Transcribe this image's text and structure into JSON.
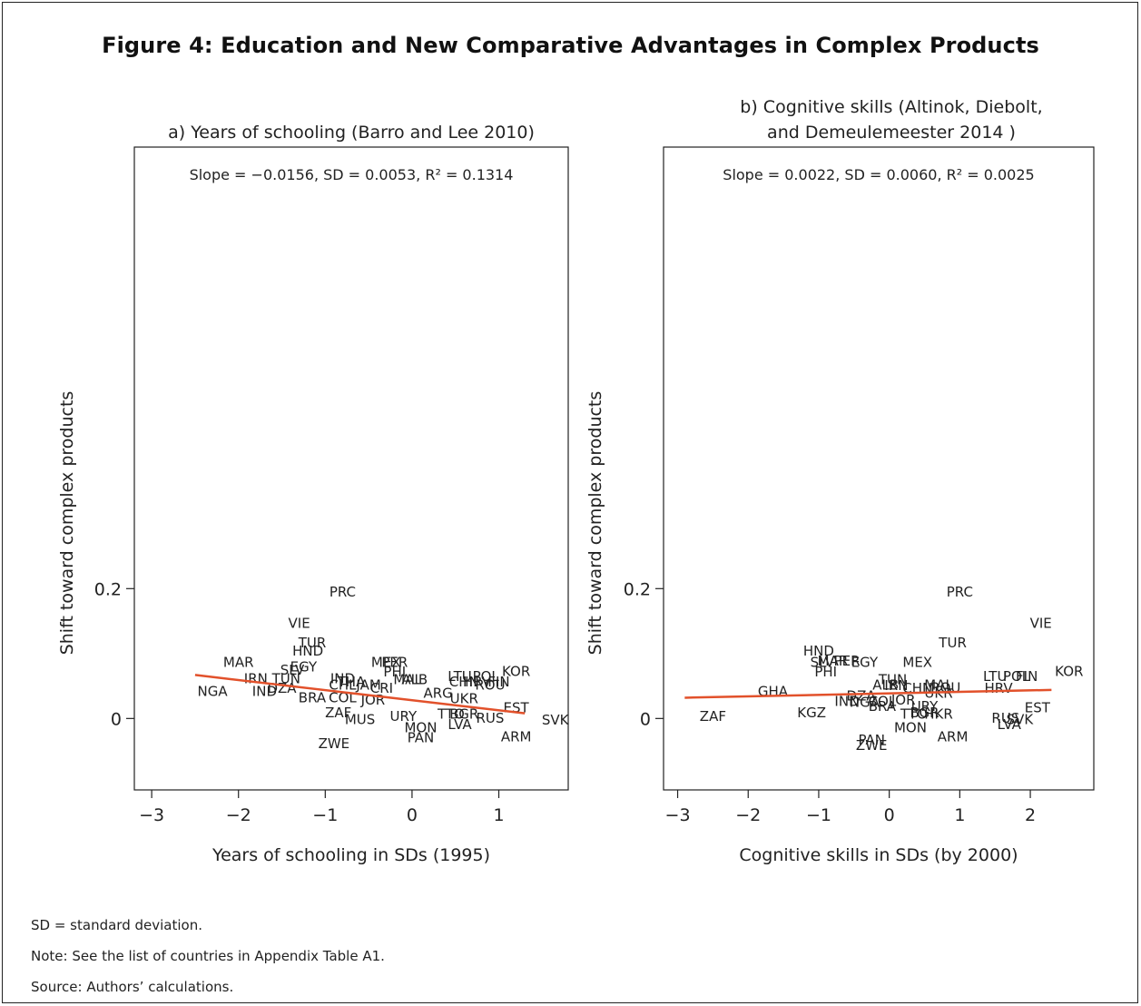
{
  "figure": {
    "title": "Figure 4: Education and New Comparative Advantages in Complex Products"
  },
  "notes": [
    "SD = standard deviation.",
    "Note: See the list of countries in Appendix Table A1.",
    "Source: Authors’ calculations."
  ],
  "colors": {
    "fit_line": "#e2512b",
    "text": "#222222",
    "axis": "#222222"
  },
  "chart_data": [
    {
      "type": "scatter",
      "title": "a) Years of schooling (Barro and Lee 2010)",
      "title_lines": [
        "a) Years of schooling (Barro and Lee 2010)"
      ],
      "annotation": "Slope = −0.0156, SD = 0.0053, R² = 0.1314",
      "xlabel": "Years of schooling in SDs (1995)",
      "ylabel": "Shift toward complex products",
      "xlim": [
        -3.2,
        1.8
      ],
      "ylim": [
        -0.11,
        0.88
      ],
      "xticks": [
        -3,
        -2,
        -1,
        0,
        1
      ],
      "xtick_labels": [
        "−3",
        "−2",
        "−1",
        "0",
        "1"
      ],
      "yticks": [
        0,
        0.2
      ],
      "ytick_labels": [
        "0",
        "0.2"
      ],
      "fit_line": {
        "x": [
          -2.5,
          1.3
        ],
        "y": [
          0.067,
          0.008
        ]
      },
      "points": [
        {
          "label": "PRC",
          "x": -0.8,
          "y": 0.196
        },
        {
          "label": "VIE",
          "x": -1.3,
          "y": 0.148
        },
        {
          "label": "TUR",
          "x": -1.15,
          "y": 0.118
        },
        {
          "label": "HND",
          "x": -1.2,
          "y": 0.105
        },
        {
          "label": "MAR",
          "x": -2.0,
          "y": 0.088
        },
        {
          "label": "EGY",
          "x": -1.25,
          "y": 0.081
        },
        {
          "label": "SLV",
          "x": -1.38,
          "y": 0.076
        },
        {
          "label": "IRN",
          "x": -1.8,
          "y": 0.063
        },
        {
          "label": "TUN",
          "x": -1.45,
          "y": 0.063
        },
        {
          "label": "IND",
          "x": -1.7,
          "y": 0.043
        },
        {
          "label": "DZA",
          "x": -1.5,
          "y": 0.048
        },
        {
          "label": "NGA",
          "x": -2.3,
          "y": 0.043
        },
        {
          "label": "MEX",
          "x": -0.3,
          "y": 0.088
        },
        {
          "label": "PER",
          "x": -0.2,
          "y": 0.088
        },
        {
          "label": "PHI",
          "x": -0.2,
          "y": 0.073
        },
        {
          "label": "MAL",
          "x": -0.05,
          "y": 0.061
        },
        {
          "label": "ALB",
          "x": 0.03,
          "y": 0.061
        },
        {
          "label": "IND",
          "x": -0.8,
          "y": 0.063
        },
        {
          "label": "THA",
          "x": -0.7,
          "y": 0.058
        },
        {
          "label": "CHL",
          "x": -0.8,
          "y": 0.053
        },
        {
          "label": "JAM",
          "x": -0.5,
          "y": 0.053
        },
        {
          "label": "CRI",
          "x": -0.35,
          "y": 0.048
        },
        {
          "label": "BRA",
          "x": -1.15,
          "y": 0.033
        },
        {
          "label": "COL",
          "x": -0.8,
          "y": 0.033
        },
        {
          "label": "JOR",
          "x": -0.45,
          "y": 0.03
        },
        {
          "label": "ZAF",
          "x": -0.85,
          "y": 0.01
        },
        {
          "label": "MUS",
          "x": -0.6,
          "y": 0.0
        },
        {
          "label": "URY",
          "x": -0.1,
          "y": 0.005
        },
        {
          "label": "MON",
          "x": 0.1,
          "y": -0.013
        },
        {
          "label": "PAN",
          "x": 0.1,
          "y": -0.028
        },
        {
          "label": "ZWE",
          "x": -0.9,
          "y": -0.037
        },
        {
          "label": "LTU",
          "x": 0.55,
          "y": 0.066
        },
        {
          "label": "POL",
          "x": 0.85,
          "y": 0.066
        },
        {
          "label": "KOR",
          "x": 1.2,
          "y": 0.074
        },
        {
          "label": "CHN",
          "x": 0.6,
          "y": 0.058
        },
        {
          "label": "HRV",
          "x": 0.75,
          "y": 0.058
        },
        {
          "label": "FIN",
          "x": 1.0,
          "y": 0.058
        },
        {
          "label": "ROU",
          "x": 0.9,
          "y": 0.053
        },
        {
          "label": "ARG",
          "x": 0.3,
          "y": 0.04
        },
        {
          "label": "UKR",
          "x": 0.6,
          "y": 0.032
        },
        {
          "label": "TTO",
          "x": 0.45,
          "y": 0.008
        },
        {
          "label": "BGR",
          "x": 0.6,
          "y": 0.008
        },
        {
          "label": "RUS",
          "x": 0.9,
          "y": 0.002
        },
        {
          "label": "LVA",
          "x": 0.55,
          "y": -0.008
        },
        {
          "label": "EST",
          "x": 1.2,
          "y": 0.018
        },
        {
          "label": "SVK",
          "x": 1.65,
          "y": -0.001
        },
        {
          "label": "ARM",
          "x": 1.2,
          "y": -0.027
        }
      ]
    },
    {
      "type": "scatter",
      "title": "b) Cognitive skills (Altinok, Diebolt, and Demeulemeester 2014 )",
      "title_lines": [
        "b) Cognitive skills (Altinok, Diebolt,",
        "and Demeulemeester 2014 )"
      ],
      "annotation": "Slope = 0.0022, SD = 0.0060, R² = 0.0025",
      "xlabel": "Cognitive skills in SDs (by 2000)",
      "ylabel": "Shift toward complex products",
      "xlim": [
        -3.2,
        2.9
      ],
      "ylim": [
        -0.11,
        0.88
      ],
      "xticks": [
        -3,
        -2,
        -1,
        0,
        1,
        2
      ],
      "xtick_labels": [
        "−3",
        "−2",
        "−1",
        "0",
        "1",
        "2"
      ],
      "yticks": [
        0,
        0.2
      ],
      "ytick_labels": [
        "0",
        "0.2"
      ],
      "fit_line": {
        "x": [
          -2.9,
          2.3
        ],
        "y": [
          0.032,
          0.044
        ]
      },
      "points": [
        {
          "label": "PRC",
          "x": 1.0,
          "y": 0.196
        },
        {
          "label": "VIE",
          "x": 2.15,
          "y": 0.148
        },
        {
          "label": "TUR",
          "x": 0.9,
          "y": 0.118
        },
        {
          "label": "HND",
          "x": -1.0,
          "y": 0.105
        },
        {
          "label": "SLV",
          "x": -0.95,
          "y": 0.088
        },
        {
          "label": "MAR",
          "x": -0.8,
          "y": 0.09
        },
        {
          "label": "PER",
          "x": -0.6,
          "y": 0.09
        },
        {
          "label": "EGY",
          "x": -0.35,
          "y": 0.088
        },
        {
          "label": "PHI",
          "x": -0.9,
          "y": 0.073
        },
        {
          "label": "MEX",
          "x": 0.4,
          "y": 0.088
        },
        {
          "label": "GHA",
          "x": -1.65,
          "y": 0.043
        },
        {
          "label": "KGZ",
          "x": -1.1,
          "y": 0.01
        },
        {
          "label": "ZAF",
          "x": -2.5,
          "y": 0.005
        },
        {
          "label": "ALB",
          "x": -0.05,
          "y": 0.053
        },
        {
          "label": "TUN",
          "x": 0.05,
          "y": 0.061
        },
        {
          "label": "IRN",
          "x": 0.1,
          "y": 0.052
        },
        {
          "label": "CHN",
          "x": 0.4,
          "y": 0.048
        },
        {
          "label": "MAL",
          "x": 0.7,
          "y": 0.053
        },
        {
          "label": "ROU",
          "x": 0.8,
          "y": 0.049
        },
        {
          "label": "DZA",
          "x": -0.4,
          "y": 0.036
        },
        {
          "label": "IND",
          "x": -0.6,
          "y": 0.028
        },
        {
          "label": "NGA",
          "x": -0.35,
          "y": 0.026
        },
        {
          "label": "COL",
          "x": -0.1,
          "y": 0.028
        },
        {
          "label": "JOR",
          "x": 0.2,
          "y": 0.03
        },
        {
          "label": "UKR",
          "x": 0.7,
          "y": 0.04
        },
        {
          "label": "BRA",
          "x": -0.1,
          "y": 0.02
        },
        {
          "label": "URY",
          "x": 0.5,
          "y": 0.02
        },
        {
          "label": "BGR",
          "x": 0.5,
          "y": 0.01
        },
        {
          "label": "TTO",
          "x": 0.35,
          "y": 0.008
        },
        {
          "label": "HKR",
          "x": 0.7,
          "y": 0.008
        },
        {
          "label": "MON",
          "x": 0.3,
          "y": -0.013
        },
        {
          "label": "ARM",
          "x": 0.9,
          "y": -0.027
        },
        {
          "label": "PAN",
          "x": -0.25,
          "y": -0.032
        },
        {
          "label": "ZWE",
          "x": -0.25,
          "y": -0.04
        },
        {
          "label": "LTU",
          "x": 1.5,
          "y": 0.066
        },
        {
          "label": "POL",
          "x": 1.8,
          "y": 0.066
        },
        {
          "label": "FIN",
          "x": 1.95,
          "y": 0.066
        },
        {
          "label": "HRV",
          "x": 1.55,
          "y": 0.048
        },
        {
          "label": "KOR",
          "x": 2.55,
          "y": 0.074
        },
        {
          "label": "EST",
          "x": 2.1,
          "y": 0.018
        },
        {
          "label": "RUS",
          "x": 1.65,
          "y": 0.002
        },
        {
          "label": "SVK",
          "x": 1.85,
          "y": 0.0
        },
        {
          "label": "LVA",
          "x": 1.7,
          "y": -0.008
        }
      ]
    }
  ]
}
